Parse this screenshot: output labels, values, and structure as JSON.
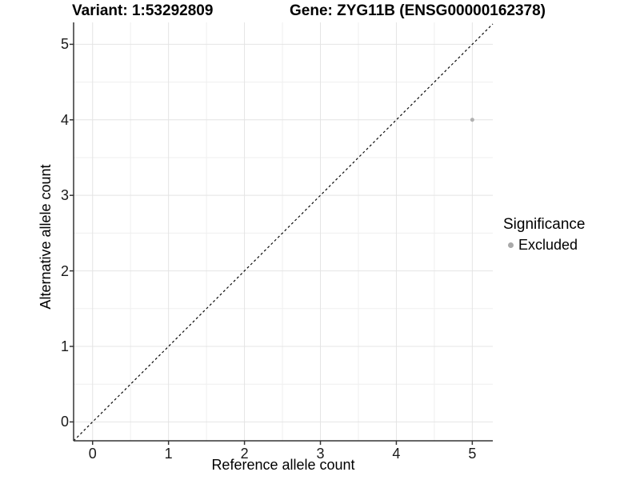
{
  "titles": {
    "left": "Variant: 1:53292809",
    "right": "Gene: ZYG11B (ENSG00000162378)"
  },
  "chart_data": {
    "type": "scatter",
    "xlabel": "Reference allele count",
    "ylabel": "Alternative allele count",
    "xlim": [
      -0.25,
      5.27
    ],
    "ylim": [
      -0.25,
      5.29
    ],
    "x_ticks": [
      0,
      1,
      2,
      3,
      4,
      5
    ],
    "y_ticks": [
      0,
      1,
      2,
      3,
      4,
      5
    ],
    "x_minor": [
      0.5,
      1.5,
      2.5,
      3.5,
      4.5
    ],
    "y_minor": [
      0.5,
      1.5,
      2.5,
      3.5,
      4.5
    ],
    "grid": true,
    "points": [
      {
        "x": 5,
        "y": 4,
        "significance": "Excluded"
      }
    ],
    "identity_line": {
      "slope": 1,
      "intercept": 0,
      "style": "dashed"
    },
    "legend": {
      "title": "Significance",
      "position": "right",
      "items": [
        {
          "label": "Excluded",
          "color": "#a9a9a9"
        }
      ]
    },
    "colors": {
      "point": "#b0b0b0",
      "major_grid": "#e4e4e4",
      "minor_grid": "#efefef",
      "axis": "#333333",
      "diagonal": "#0a0a0a"
    }
  }
}
